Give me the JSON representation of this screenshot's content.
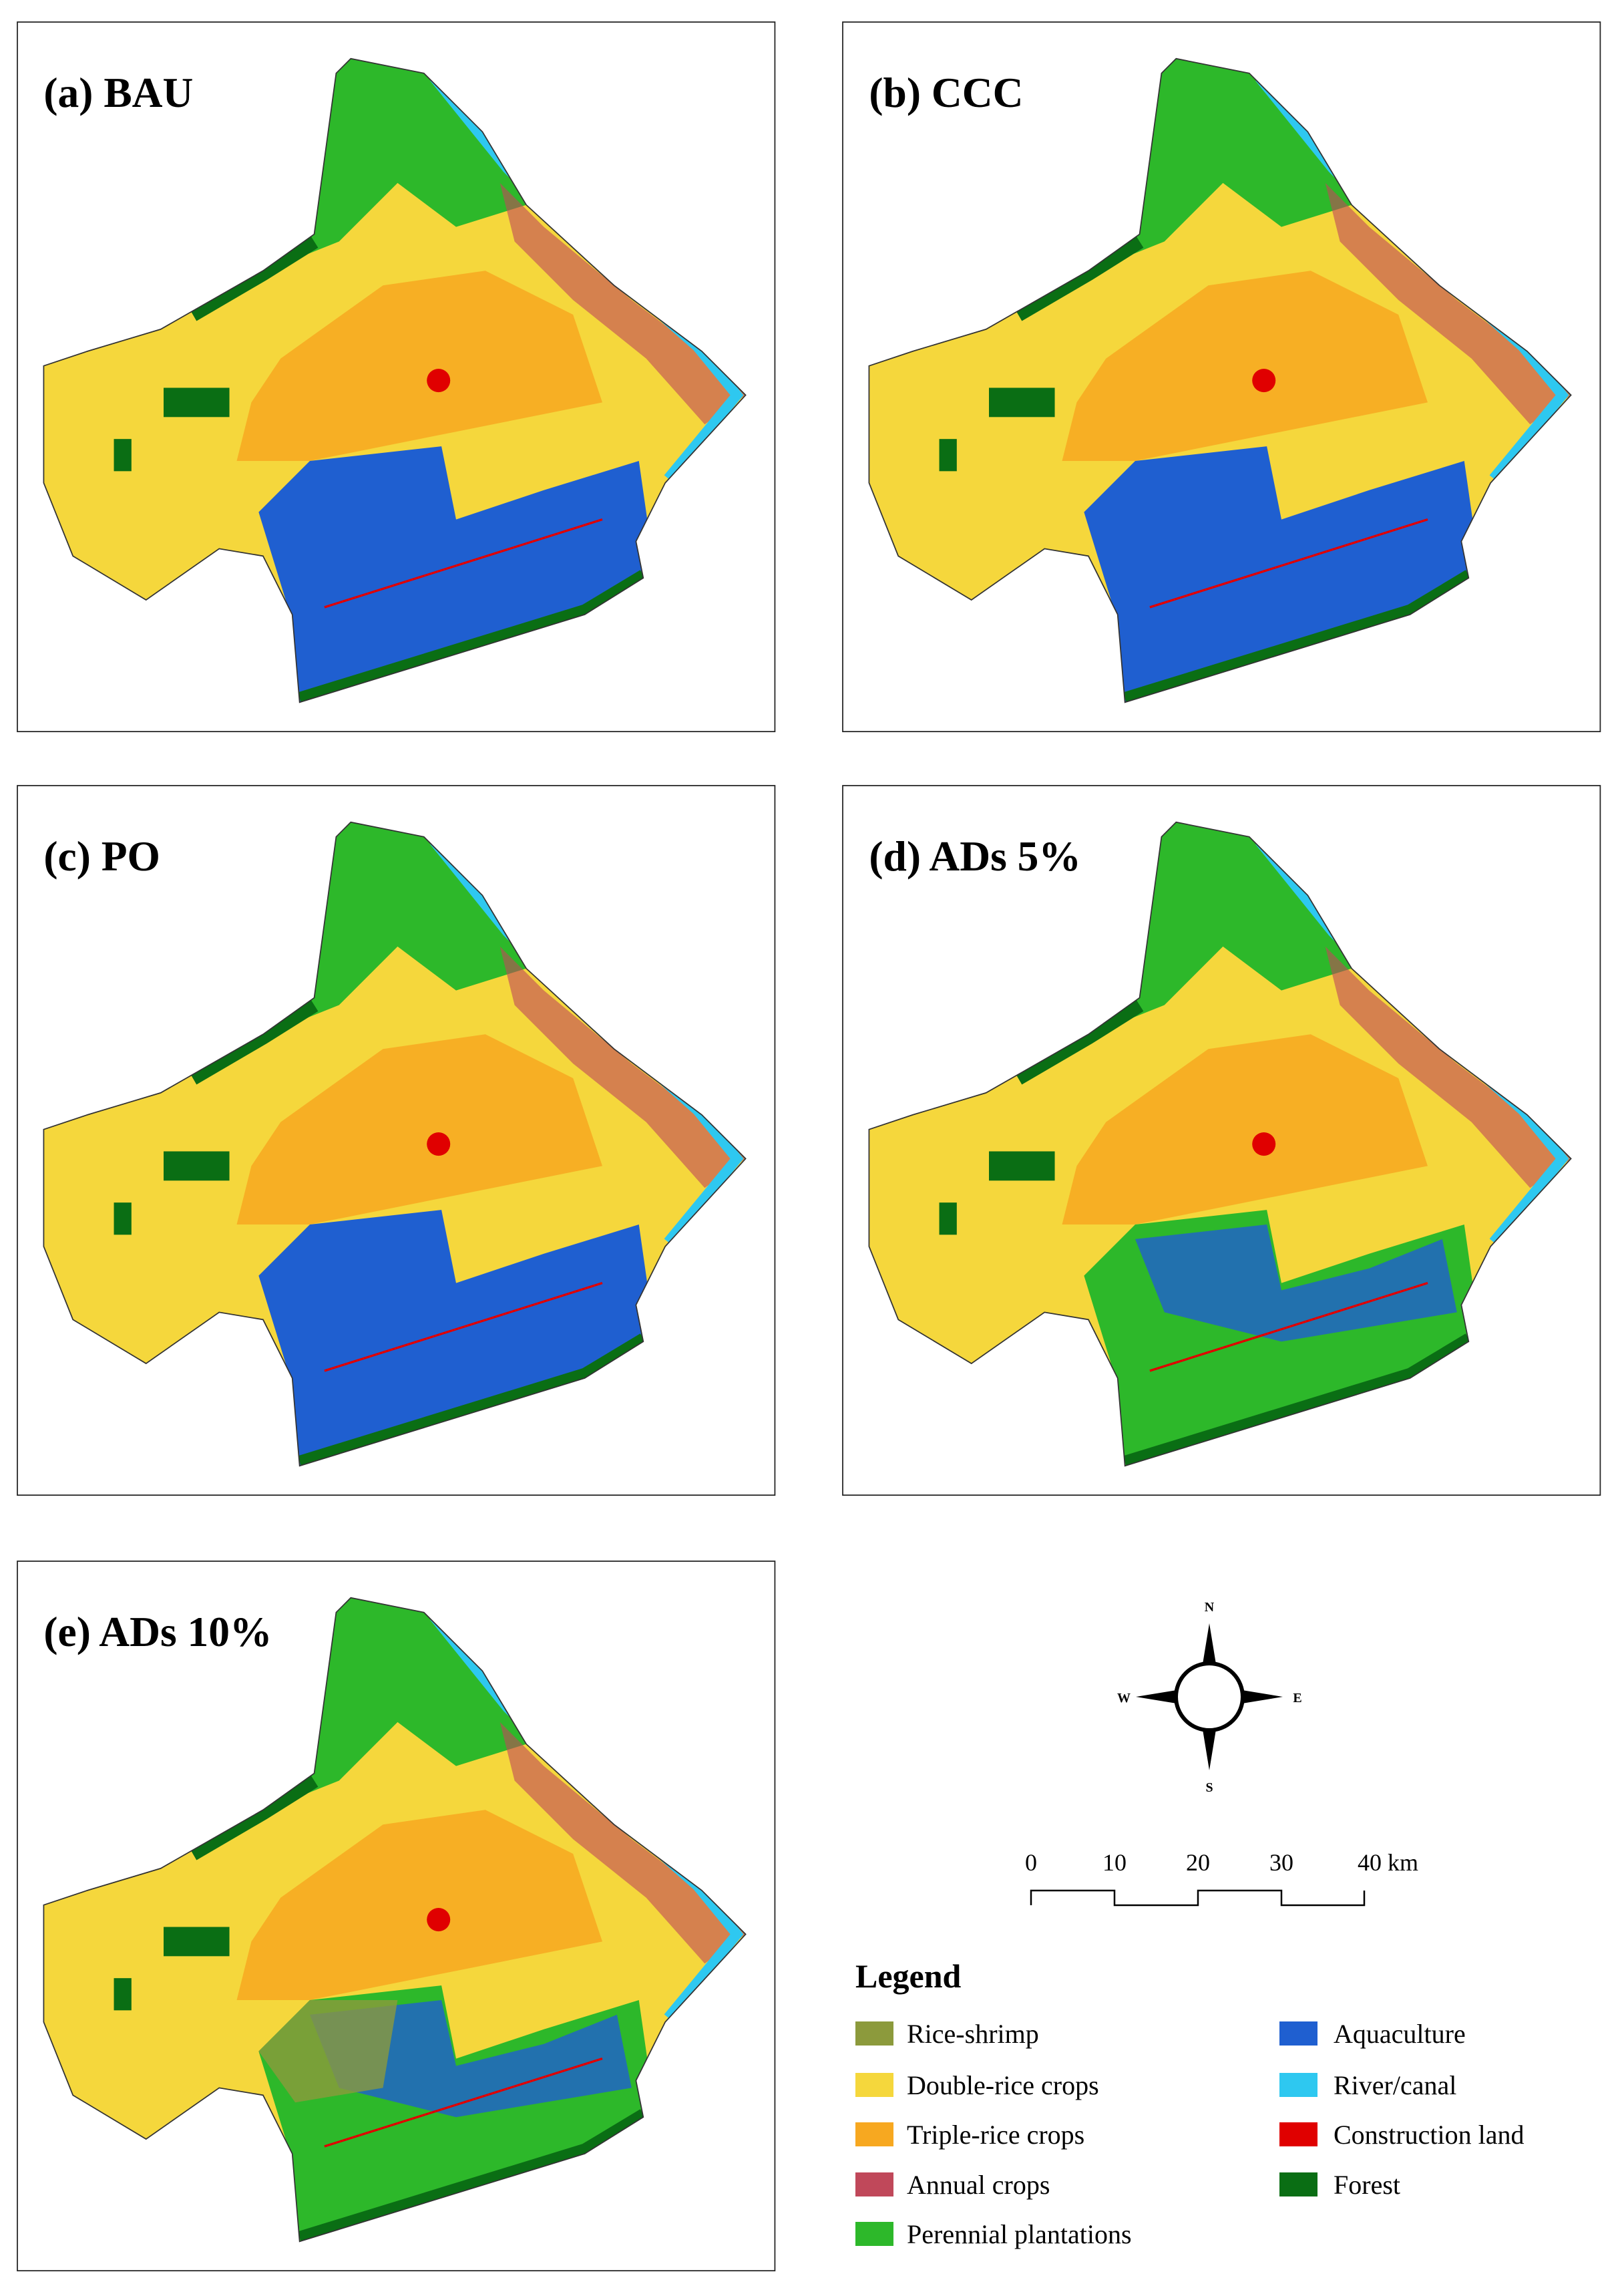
{
  "panels": [
    {
      "title": "(a) BAU"
    },
    {
      "title": "(b) CCC"
    },
    {
      "title": "(c) PO"
    },
    {
      "title": "(d) ADs 5%"
    },
    {
      "title": "(e) ADs 10%"
    }
  ],
  "compass": {
    "north": "N",
    "south": "S",
    "west": "W",
    "east": "E"
  },
  "scale_bar": {
    "labels": [
      "0",
      "10",
      "20",
      "30",
      "40 km"
    ]
  },
  "legend": {
    "title": "Legend",
    "items": [
      {
        "label": "Rice-shrimp",
        "color": "#8c9a3c"
      },
      {
        "label": "Double-rice crops",
        "color": "#f5d73c"
      },
      {
        "label": "Triple-rice crops",
        "color": "#f7a820"
      },
      {
        "label": "Annual crops",
        "color": "#c0485a"
      },
      {
        "label": "Perennial plantations",
        "color": "#2db82a"
      },
      {
        "label": "Aquaculture",
        "color": "#1f5fd0"
      },
      {
        "label": "River/canal",
        "color": "#2ec8f0"
      },
      {
        "label": "Construction land",
        "color": "#e00000"
      },
      {
        "label": "Forest",
        "color": "#0a6e14"
      }
    ]
  }
}
